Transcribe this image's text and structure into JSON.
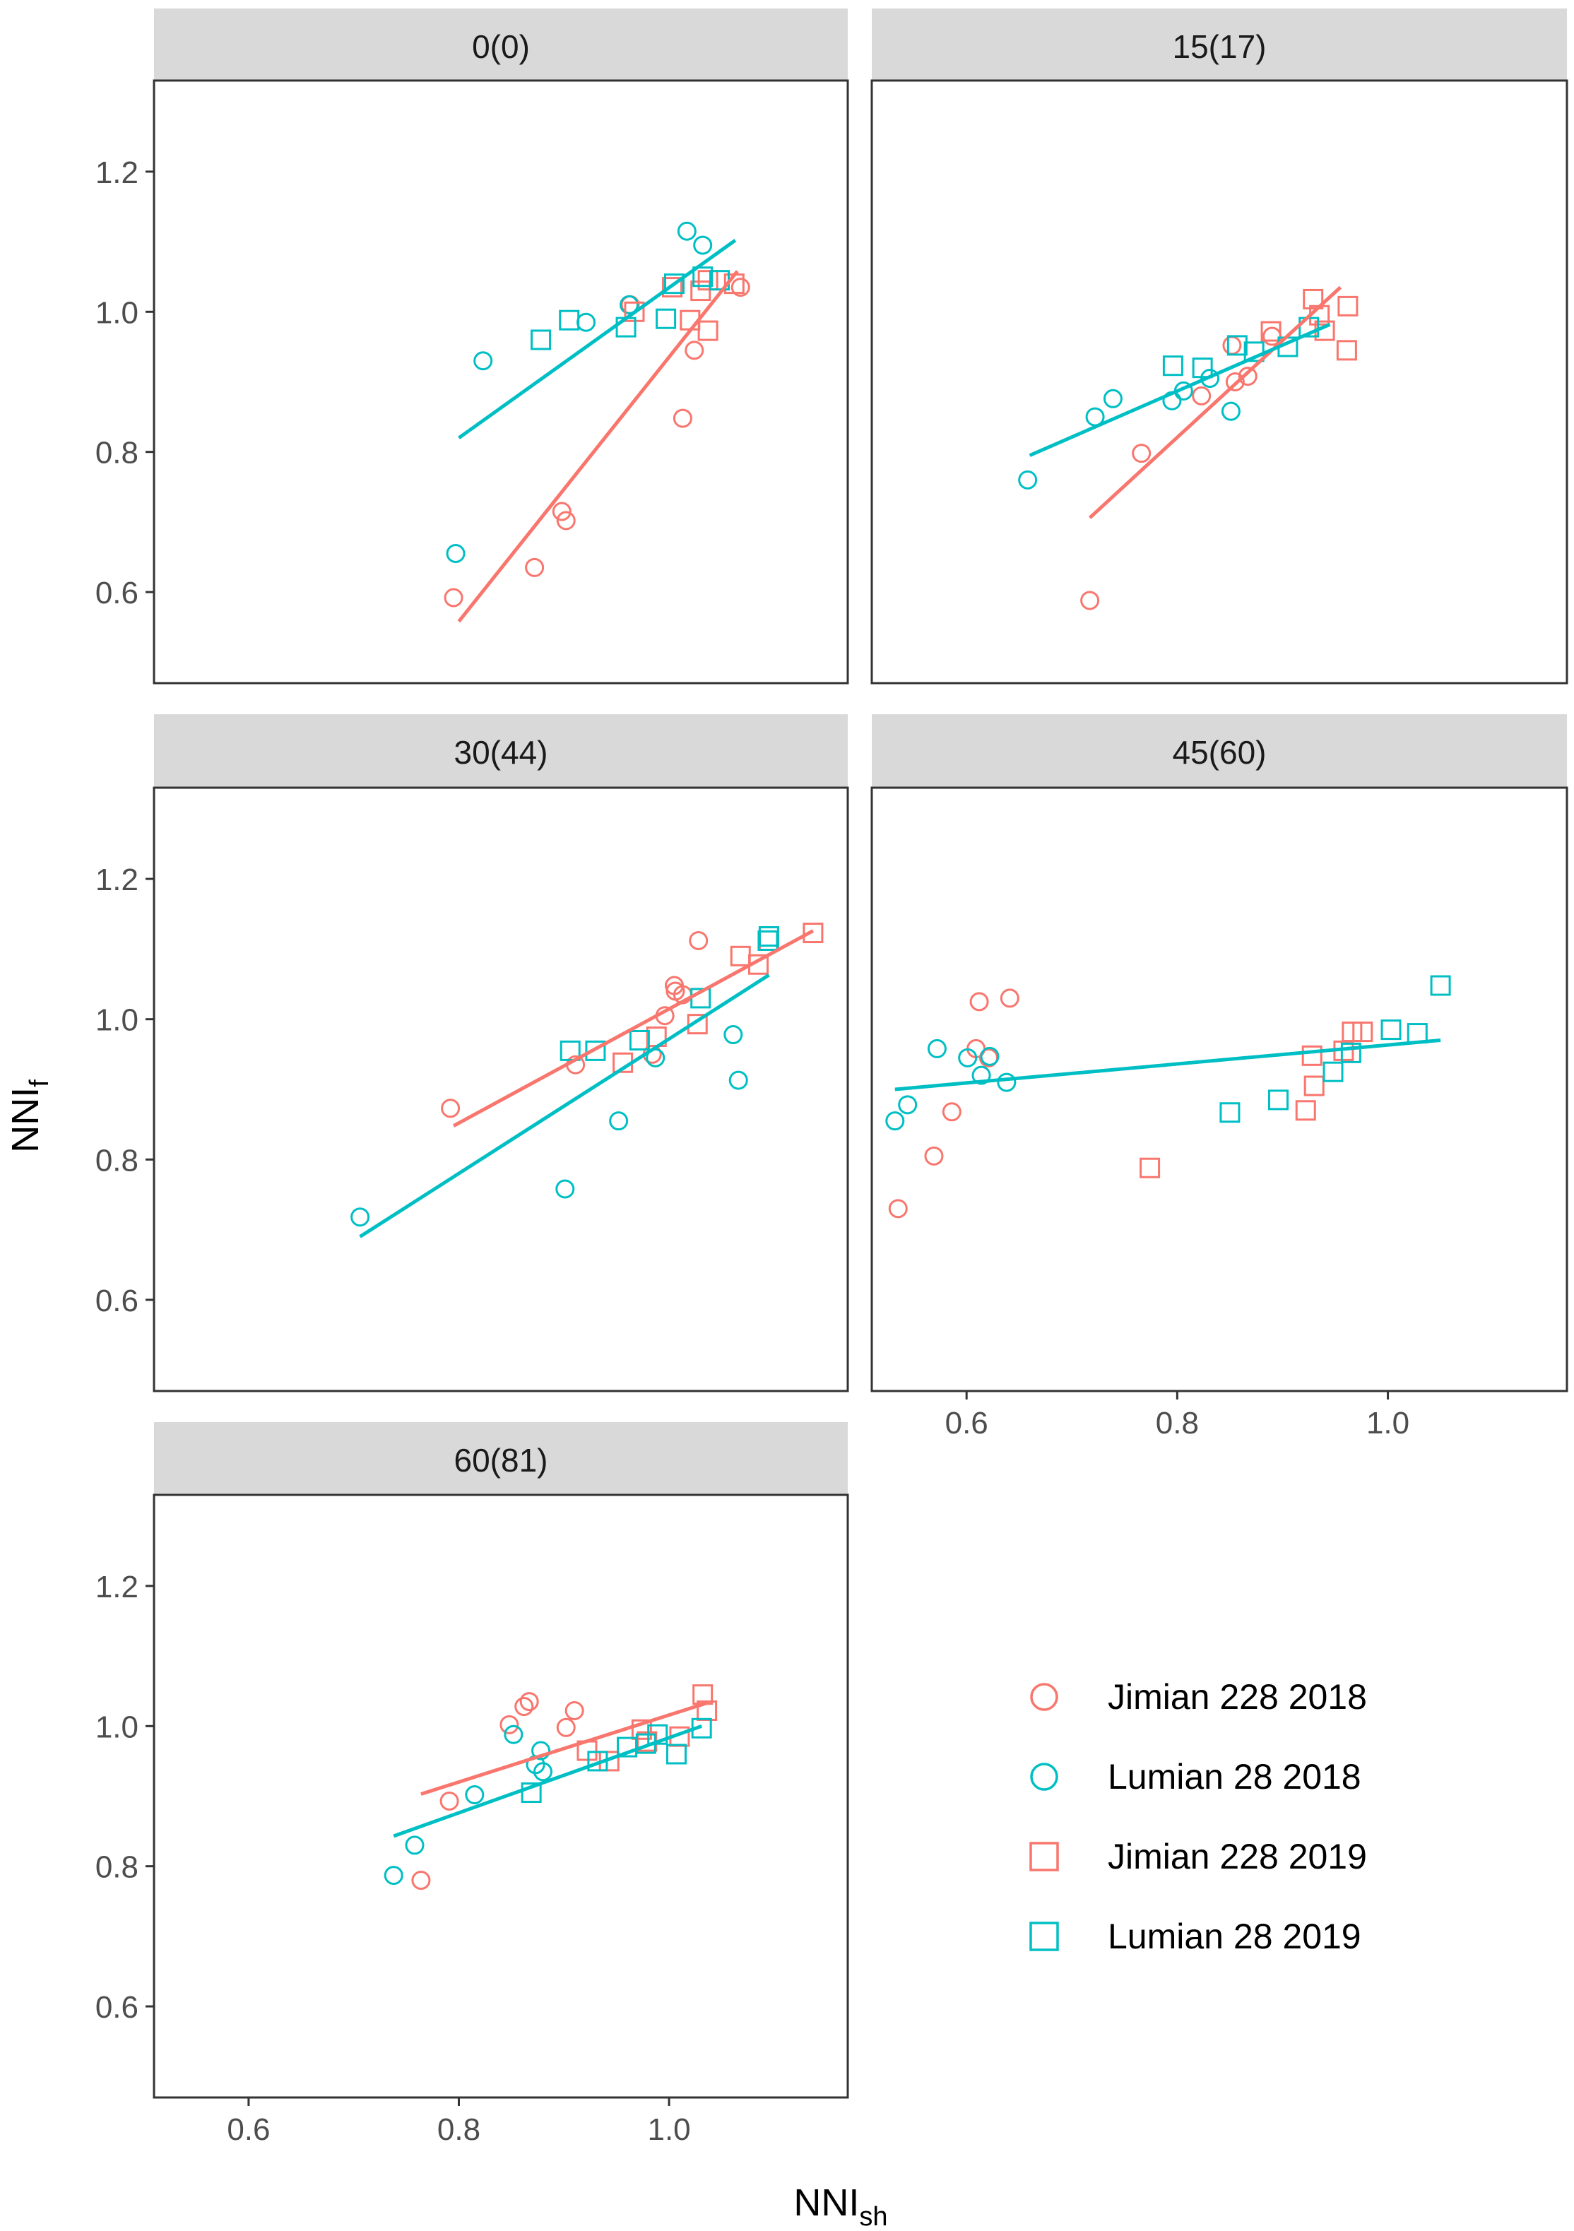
{
  "chart_data": {
    "type": "scatter",
    "facet_layout": "2 columns, 3 rows, wrap",
    "xlabel_main": "NNI",
    "xlabel_sub": "sh",
    "ylabel_main": "NNI",
    "ylabel_sub": "f",
    "xlim": [
      0.51,
      1.17
    ],
    "ylim": [
      0.47,
      1.33
    ],
    "xticks": [
      0.6,
      0.8,
      1.0
    ],
    "xtick_labels": [
      "0.6",
      "0.8",
      "1.0"
    ],
    "yticks": [
      0.6,
      0.8,
      1.0,
      1.2
    ],
    "ytick_labels": [
      "0.6",
      "0.8",
      "1.0",
      "1.2"
    ],
    "legend_position": "bottom-right",
    "colors": {
      "Jimian": "#F8766D",
      "Lumian": "#00BFC4"
    },
    "series_def": [
      {
        "key": "j18",
        "name": "Jimian 228 2018",
        "cultivar": "Jimian",
        "shape": "circle"
      },
      {
        "key": "l18",
        "name": "Lumian 28 2018",
        "cultivar": "Lumian",
        "shape": "circle"
      },
      {
        "key": "j19",
        "name": "Jimian 228 2019",
        "cultivar": "Jimian",
        "shape": "square"
      },
      {
        "key": "l19",
        "name": "Lumian 28 2019",
        "cultivar": "Lumian",
        "shape": "square"
      }
    ],
    "panels": [
      {
        "title": "0(0)",
        "points": {
          "j18": [
            [
              0.795,
              0.592
            ],
            [
              0.872,
              0.635
            ],
            [
              0.898,
              0.715
            ],
            [
              0.902,
              0.702
            ],
            [
              1.013,
              0.848
            ],
            [
              1.024,
              0.945
            ],
            [
              1.068,
              1.035
            ],
            [
              0.963,
              1.01
            ]
          ],
          "l18": [
            [
              0.797,
              0.655
            ],
            [
              0.823,
              0.93
            ],
            [
              0.921,
              0.985
            ],
            [
              0.962,
              1.01
            ],
            [
              1.017,
              1.115
            ],
            [
              1.032,
              1.095
            ]
          ],
          "j19": [
            [
              0.967,
              1.0
            ],
            [
              1.003,
              1.035
            ],
            [
              1.02,
              0.988
            ],
            [
              1.03,
              1.03
            ],
            [
              1.037,
              0.973
            ],
            [
              1.037,
              1.045
            ],
            [
              1.062,
              1.04
            ]
          ],
          "l19": [
            [
              0.878,
              0.96
            ],
            [
              0.905,
              0.988
            ],
            [
              0.959,
              0.978
            ],
            [
              0.997,
              0.99
            ],
            [
              1.005,
              1.04
            ],
            [
              1.032,
              1.05
            ],
            [
              1.048,
              1.045
            ]
          ]
        },
        "lines": [
          {
            "cultivar": "Jimian",
            "x": [
              0.8,
              1.065
            ],
            "y": [
              0.558,
              1.058
            ]
          },
          {
            "cultivar": "Lumian",
            "x": [
              0.8,
              1.063
            ],
            "y": [
              0.82,
              1.102
            ]
          }
        ]
      },
      {
        "title": "15(17)",
        "points": {
          "j18": [
            [
              0.717,
              0.588
            ],
            [
              0.766,
              0.798
            ],
            [
              0.823,
              0.88
            ],
            [
              0.852,
              0.952
            ],
            [
              0.855,
              0.9
            ],
            [
              0.867,
              0.908
            ],
            [
              0.89,
              0.965
            ]
          ],
          "l18": [
            [
              0.658,
              0.76
            ],
            [
              0.722,
              0.85
            ],
            [
              0.739,
              0.876
            ],
            [
              0.795,
              0.873
            ],
            [
              0.806,
              0.887
            ],
            [
              0.831,
              0.905
            ],
            [
              0.851,
              0.858
            ]
          ],
          "j19": [
            [
              0.889,
              0.972
            ],
            [
              0.929,
              1.018
            ],
            [
              0.935,
              0.995
            ],
            [
              0.94,
              0.973
            ],
            [
              0.961,
              0.945
            ],
            [
              0.962,
              1.008
            ]
          ],
          "l19": [
            [
              0.796,
              0.923
            ],
            [
              0.824,
              0.92
            ],
            [
              0.857,
              0.952
            ],
            [
              0.873,
              0.943
            ],
            [
              0.905,
              0.95
            ],
            [
              0.925,
              0.978
            ]
          ]
        },
        "lines": [
          {
            "cultivar": "Jimian",
            "x": [
              0.717,
              0.955
            ],
            "y": [
              0.706,
              1.035
            ]
          },
          {
            "cultivar": "Lumian",
            "x": [
              0.66,
              0.945
            ],
            "y": [
              0.795,
              0.982
            ]
          }
        ]
      },
      {
        "title": "30(44)",
        "points": {
          "j18": [
            [
              0.792,
              0.873
            ],
            [
              0.911,
              0.935
            ],
            [
              0.984,
              0.95
            ],
            [
              0.996,
              1.005
            ],
            [
              1.005,
              1.048
            ],
            [
              1.006,
              1.04
            ],
            [
              1.013,
              1.035
            ],
            [
              1.028,
              1.112
            ]
          ],
          "l18": [
            [
              0.706,
              0.718
            ],
            [
              0.901,
              0.758
            ],
            [
              0.952,
              0.855
            ],
            [
              0.987,
              0.945
            ],
            [
              1.061,
              0.978
            ],
            [
              1.066,
              0.913
            ]
          ],
          "j19": [
            [
              0.956,
              0.938
            ],
            [
              0.988,
              0.975
            ],
            [
              1.027,
              0.993
            ],
            [
              1.068,
              1.09
            ],
            [
              1.085,
              1.078
            ],
            [
              1.095,
              1.112
            ],
            [
              1.137,
              1.123
            ]
          ],
          "l19": [
            [
              0.906,
              0.955
            ],
            [
              0.93,
              0.955
            ],
            [
              0.972,
              0.97
            ],
            [
              1.03,
              1.03
            ],
            [
              1.094,
              1.112
            ],
            [
              1.095,
              1.118
            ]
          ]
        },
        "lines": [
          {
            "cultivar": "Jimian",
            "x": [
              0.795,
              1.137
            ],
            "y": [
              0.848,
              1.126
            ]
          },
          {
            "cultivar": "Lumian",
            "x": [
              0.706,
              1.095
            ],
            "y": [
              0.69,
              1.063
            ]
          }
        ]
      },
      {
        "title": "45(60)",
        "points": {
          "j18": [
            [
              0.535,
              0.73
            ],
            [
              0.569,
              0.805
            ],
            [
              0.586,
              0.868
            ],
            [
              0.609,
              0.958
            ],
            [
              0.612,
              1.025
            ],
            [
              0.621,
              0.945
            ],
            [
              0.641,
              1.03
            ]
          ],
          "l18": [
            [
              0.532,
              0.855
            ],
            [
              0.544,
              0.878
            ],
            [
              0.572,
              0.958
            ],
            [
              0.601,
              0.945
            ],
            [
              0.614,
              0.92
            ],
            [
              0.622,
              0.947
            ],
            [
              0.638,
              0.91
            ]
          ],
          "j19": [
            [
              0.774,
              0.788
            ],
            [
              0.922,
              0.87
            ],
            [
              0.928,
              0.948
            ],
            [
              0.93,
              0.905
            ],
            [
              0.958,
              0.955
            ],
            [
              0.966,
              0.982
            ],
            [
              0.976,
              0.982
            ]
          ],
          "l19": [
            [
              0.85,
              0.867
            ],
            [
              0.896,
              0.885
            ],
            [
              0.948,
              0.925
            ],
            [
              0.965,
              0.952
            ],
            [
              1.003,
              0.985
            ],
            [
              1.028,
              0.98
            ],
            [
              1.05,
              1.048
            ]
          ]
        },
        "lines": [
          {
            "cultivar": "Lumian",
            "x": [
              0.532,
              1.05
            ],
            "y": [
              0.9,
              0.97
            ]
          }
        ]
      },
      {
        "title": "60(81)",
        "points": {
          "j18": [
            [
              0.764,
              0.78
            ],
            [
              0.791,
              0.893
            ],
            [
              0.848,
              1.002
            ],
            [
              0.862,
              1.028
            ],
            [
              0.867,
              1.035
            ],
            [
              0.902,
              0.998
            ],
            [
              0.91,
              1.022
            ]
          ],
          "l18": [
            [
              0.738,
              0.787
            ],
            [
              0.758,
              0.83
            ],
            [
              0.815,
              0.902
            ],
            [
              0.852,
              0.988
            ],
            [
              0.873,
              0.945
            ],
            [
              0.878,
              0.965
            ],
            [
              0.88,
              0.935
            ]
          ],
          "j19": [
            [
              0.922,
              0.965
            ],
            [
              0.943,
              0.95
            ],
            [
              0.974,
              0.995
            ],
            [
              0.979,
              0.978
            ],
            [
              1.01,
              0.985
            ],
            [
              1.032,
              1.045
            ],
            [
              1.036,
              1.022
            ]
          ],
          "l19": [
            [
              0.869,
              0.905
            ],
            [
              0.932,
              0.95
            ],
            [
              0.96,
              0.97
            ],
            [
              0.978,
              0.975
            ],
            [
              0.989,
              0.988
            ],
            [
              1.007,
              0.96
            ],
            [
              1.031,
              0.997
            ]
          ]
        },
        "lines": [
          {
            "cultivar": "Jimian",
            "x": [
              0.764,
              1.036
            ],
            "y": [
              0.903,
              1.033
            ]
          },
          {
            "cultivar": "Lumian",
            "x": [
              0.738,
              1.031
            ],
            "y": [
              0.843,
              1.0
            ]
          }
        ]
      }
    ]
  }
}
